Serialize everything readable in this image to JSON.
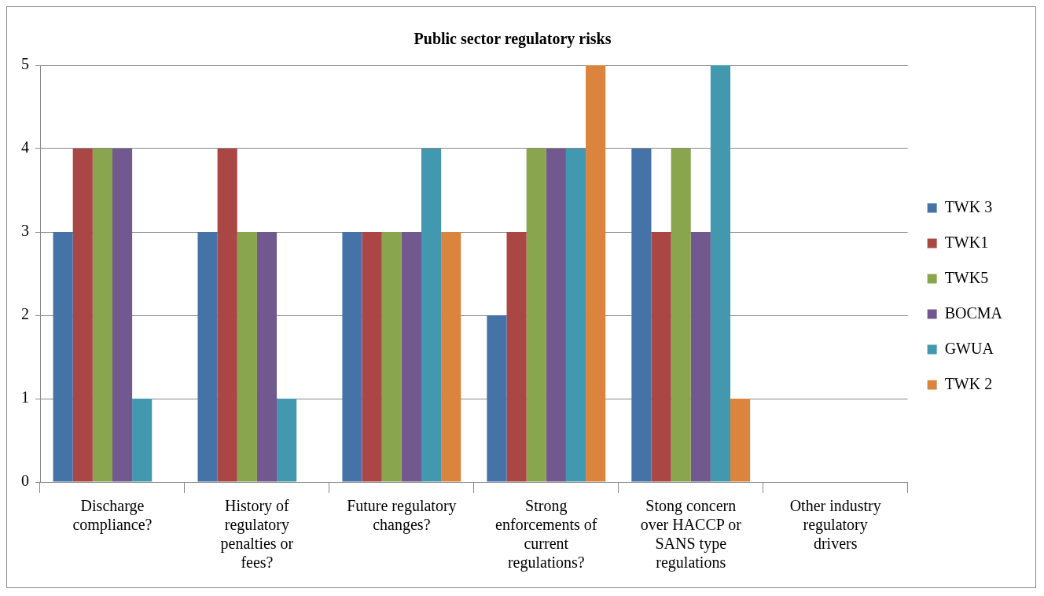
{
  "chart_data": {
    "type": "bar",
    "title": "Public sector regulatory risks",
    "categories": [
      "Discharge compliance?",
      "History of regulatory penalties or fees?",
      "Future regulatory changes?",
      "Strong enforcements of current regulations?",
      "Stong concern over HACCP or SANS type regulations",
      "Other industry regulatory drivers"
    ],
    "series": [
      {
        "name": "TWK 3",
        "color": "#4572a7",
        "values": [
          3,
          3,
          3,
          2,
          4,
          null
        ]
      },
      {
        "name": "TWK1",
        "color": "#aa4643",
        "values": [
          4,
          4,
          3,
          3,
          3,
          null
        ]
      },
      {
        "name": "TWK5",
        "color": "#89a54e",
        "values": [
          4,
          3,
          3,
          4,
          4,
          null
        ]
      },
      {
        "name": "BOCMA",
        "color": "#71588f",
        "values": [
          4,
          3,
          3,
          4,
          3,
          null
        ]
      },
      {
        "name": "GWUA",
        "color": "#4198af",
        "values": [
          1,
          1,
          4,
          4,
          5,
          null
        ]
      },
      {
        "name": "TWK 2",
        "color": "#db843d",
        "values": [
          null,
          null,
          3,
          5,
          1,
          null
        ]
      }
    ],
    "ylim": [
      0,
      5
    ],
    "yticks": [
      0,
      1,
      2,
      3,
      4,
      5
    ],
    "grid": "y",
    "legend": "right"
  }
}
